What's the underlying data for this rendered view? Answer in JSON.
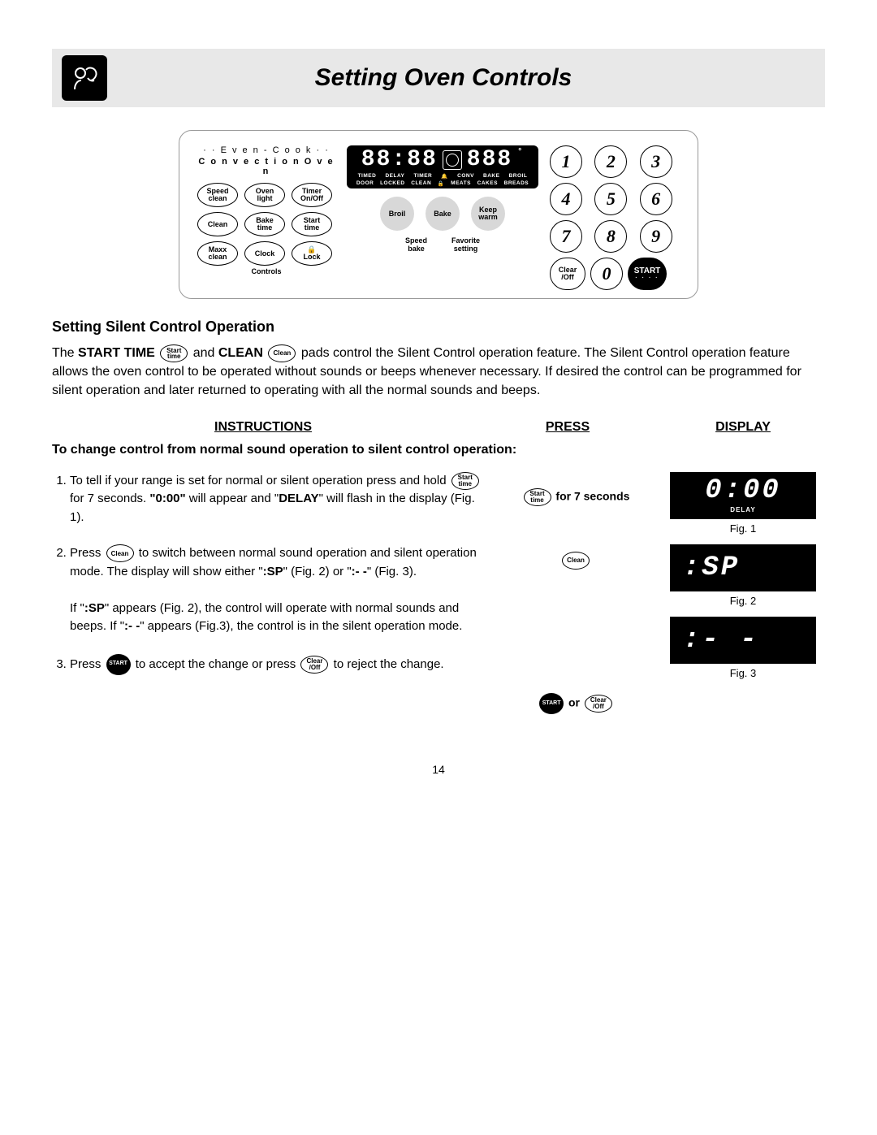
{
  "header": {
    "title": "Setting Oven Controls"
  },
  "panel": {
    "brand1": "· · E v e n - C o o k · ·",
    "brand2": "C o n v e c t i o n  O v e n",
    "leftButtons": [
      [
        "Speed",
        "clean"
      ],
      [
        "Oven",
        "light"
      ],
      [
        "Timer",
        "On/Off"
      ],
      [
        "Clean",
        ""
      ],
      [
        "Bake",
        "time"
      ],
      [
        "Start",
        "time"
      ],
      [
        "Maxx",
        "clean"
      ],
      [
        "Clock",
        ""
      ],
      [
        "🔒",
        "Lock"
      ]
    ],
    "controlsLabel": "Controls",
    "lcdDigits": "88:88",
    "lcdRight": "888",
    "lcdRow1": [
      "TIMED",
      "DELAY",
      "TIMER",
      "🔔",
      "CONV",
      "BAKE",
      "BROIL"
    ],
    "lcdRow2": [
      "DOOR",
      "LOCKED",
      "CLEAN",
      "🔒",
      "MEATS",
      "CAKES",
      "BREADS"
    ],
    "centerBtns": [
      [
        "Broil",
        ""
      ],
      [
        "Bake",
        ""
      ],
      [
        "Keep",
        "warm"
      ]
    ],
    "centerLbls": [
      [
        "Speed",
        "bake"
      ],
      [
        "Favorite",
        "setting"
      ]
    ],
    "numpad": [
      "1",
      "2",
      "3",
      "4",
      "5",
      "6",
      "7",
      "8",
      "9"
    ],
    "clearOff": [
      "Clear",
      "/Off"
    ],
    "zero": "0",
    "start": "START"
  },
  "section": {
    "title": "Setting Silent Control Operation",
    "intro1a": "The ",
    "intro1b": "START TIME",
    "intro1c": " and ",
    "intro1d": "CLEAN",
    "intro1e": " pads control the Silent Control operation feature. The Silent Control operation feature allows the oven control to be operated without sounds or beeps whenever necessary. If desired the control can be programmed for silent operation and later returned to operating with all the normal sounds and beeps."
  },
  "headers": {
    "instr": "INSTRUCTIONS",
    "press": "PRESS",
    "display": "DISPLAY"
  },
  "sub": "To change control from normal sound operation to silent control operation:",
  "steps": {
    "s1a": "To tell if your range is set for normal or silent operation press and hold ",
    "s1b": " for 7 seconds. ",
    "s1c": "\"0:00\"",
    "s1d": " will appear and \"",
    "s1e": "DELAY",
    "s1f": "\" will flash in the display (Fig. 1).",
    "s2a": "Press ",
    "s2b": " to switch between normal sound operation and silent operation mode. The display will show either \"",
    "s2c": ":SP",
    "s2d": "\" (Fig. 2) or \"",
    "s2e": ":- -",
    "s2f": "\" (Fig. 3).",
    "s2g": "If \"",
    "s2h": ":SP",
    "s2i": "\" appears (Fig. 2), the control will operate with normal sounds and beeps.  If \"",
    "s2j": ":- -",
    "s2k": "\" appears (Fig.3), the control is in the silent operation mode.",
    "s3a": "Press ",
    "s3b": " to accept the change or press ",
    "s3c": " to reject the change."
  },
  "pressCol": {
    "p1": " for 7 seconds",
    "p3or": " or "
  },
  "figs": {
    "d1": "0:00",
    "d1sub": "DELAY",
    "f1": "Fig. 1",
    "d2": ":SP",
    "f2": "Fig. 2",
    "d3": ":- -",
    "f3": "Fig. 3"
  },
  "labels": {
    "startTime": [
      "Start",
      "time"
    ],
    "clean": "Clean",
    "clearOff": [
      "Clear",
      "/Off"
    ],
    "startBtn": "START"
  },
  "pageNum": "14"
}
